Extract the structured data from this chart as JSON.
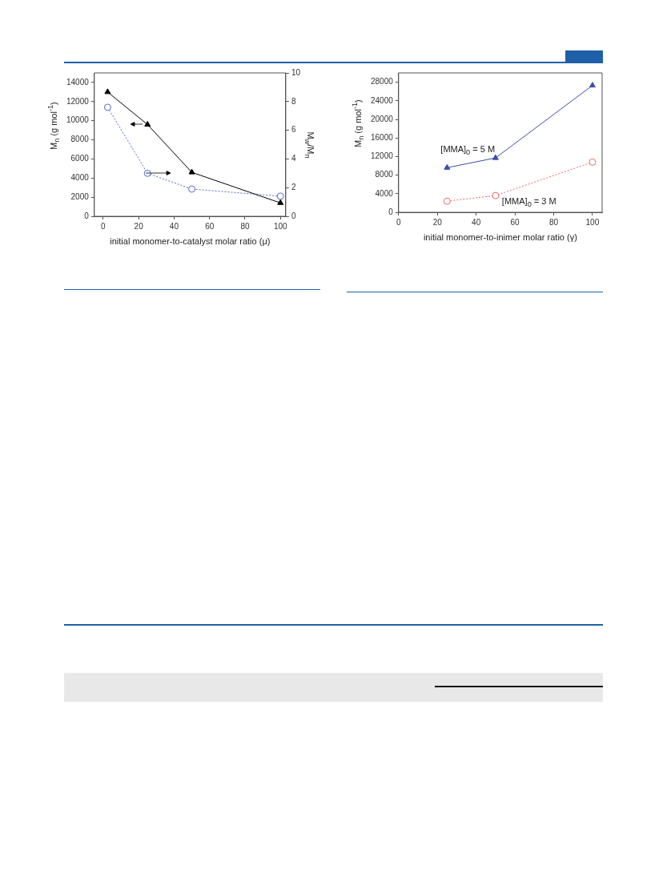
{
  "chart_data": [
    {
      "type": "line",
      "xlabel": "initial monomer-to-catalyst molar ratio (μ)",
      "ylabel": "M$_{n}$ (g mol$^{-1}$)",
      "y2label": "M$_{w}$/M$_{n}$",
      "x": [
        2.5,
        25,
        50,
        100
      ],
      "series": [
        {
          "color": "#000000",
          "values": [
            13000,
            9600,
            4600,
            1400
          ],
          "marker": "triangle",
          "line_style": "solid"
        },
        {
          "color": "#5466d0",
          "values": [
            7.6,
            3.0,
            1.9,
            1.4
          ],
          "marker": "circle",
          "line_style": "dotted",
          "axis": "y2"
        }
      ],
      "xlim": [
        -5,
        103
      ],
      "xticks": [
        0,
        20,
        40,
        60,
        80,
        100
      ],
      "ylim": [
        0,
        15000
      ],
      "yticks": [
        0,
        2000,
        4000,
        6000,
        8000,
        10000,
        12000,
        14000
      ],
      "y2lim": [
        0,
        10
      ],
      "y2ticks": [
        0,
        2,
        4,
        6,
        8,
        10
      ]
    },
    {
      "type": "line",
      "xlabel": "initial monomer-to-inimer molar ratio (γ)",
      "ylabel": "M$_{n}$ (g mol$^{-1}$)",
      "x": [
        25,
        50,
        100
      ],
      "series": [
        {
          "name": "[MMA]$_{0}$ = 5 M",
          "color": "#3a4fa8",
          "values": [
            9600,
            11700,
            27300
          ],
          "marker": "triangle",
          "line_style": "solid"
        },
        {
          "name": "[MMA]$_{0}$ = 3 M",
          "color": "#e86a6a",
          "values": [
            2400,
            3600,
            10800
          ],
          "marker": "circle",
          "line_style": "dotted"
        }
      ],
      "xlim": [
        0,
        105
      ],
      "xticks": [
        0,
        20,
        40,
        60,
        80,
        100
      ],
      "ylim": [
        0,
        30000
      ],
      "yticks": [
        0,
        4000,
        8000,
        12000,
        16000,
        20000,
        24000,
        28000
      ]
    }
  ]
}
